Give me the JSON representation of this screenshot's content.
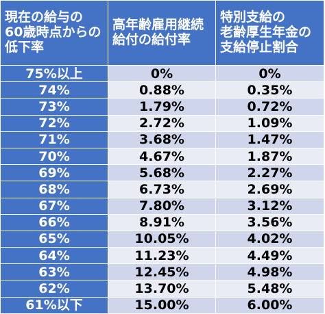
{
  "header": {
    "col1": [
      "現在の給与の",
      "60歳時点からの",
      "低下率"
    ],
    "col2": [
      "高年齢雇用継続",
      "給付の給付率"
    ],
    "col3": [
      "特別支給の",
      "老齢厚生年金の",
      "支給停止割合"
    ]
  },
  "rows": [
    [
      "75%以上",
      "0%",
      "0%"
    ],
    [
      "74%",
      "0.88%",
      "0.35%"
    ],
    [
      "73%",
      "1.79%",
      "0.72%"
    ],
    [
      "72%",
      "2.72%",
      "1.09%"
    ],
    [
      "71%",
      "3.68%",
      "1.47%"
    ],
    [
      "70%",
      "4.67%",
      "1.87%"
    ],
    [
      "69%",
      "5.68%",
      "2.27%"
    ],
    [
      "68%",
      "6.73%",
      "2.69%"
    ],
    [
      "67%",
      "7.80%",
      "3.12%"
    ],
    [
      "66%",
      "8.91%",
      "3.56%"
    ],
    [
      "65%",
      "10.05%",
      "4.02%"
    ],
    [
      "64%",
      "11.23%",
      "4.49%"
    ],
    [
      "63%",
      "12.45%",
      "4.98%"
    ],
    [
      "62%",
      "13.70%",
      "5.48%"
    ],
    [
      "61%以下",
      "15.00%",
      "6.00%"
    ]
  ],
  "colors": {
    "header": "#4472c4",
    "row_odd": "#cfd5ea",
    "row_even": "#e9ebf5"
  }
}
